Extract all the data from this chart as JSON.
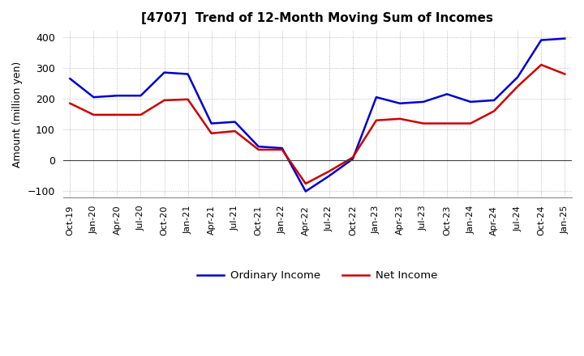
{
  "title": "[4707]  Trend of 12-Month Moving Sum of Incomes",
  "ylabel": "Amount (million yen)",
  "ylim": [
    -120,
    420
  ],
  "yticks": [
    -100,
    0,
    100,
    200,
    300,
    400
  ],
  "background_color": "#ffffff",
  "grid_color": "#aaaaaa",
  "ordinary_income_color": "#0000cc",
  "net_income_color": "#cc0000",
  "x_labels": [
    "Oct-19",
    "Jan-20",
    "Apr-20",
    "Jul-20",
    "Oct-20",
    "Jan-21",
    "Apr-21",
    "Jul-21",
    "Oct-21",
    "Jan-22",
    "Apr-22",
    "Jul-22",
    "Oct-22",
    "Jan-23",
    "Apr-23",
    "Jul-23",
    "Oct-23",
    "Jan-24",
    "Apr-24",
    "Jul-24",
    "Oct-24",
    "Jan-25"
  ],
  "ordinary_income": [
    265,
    205,
    210,
    210,
    285,
    280,
    120,
    125,
    45,
    40,
    -100,
    -50,
    5,
    205,
    185,
    190,
    215,
    190,
    195,
    270,
    390,
    395
  ],
  "net_income": [
    185,
    148,
    148,
    148,
    195,
    198,
    88,
    95,
    35,
    35,
    -75,
    -35,
    10,
    130,
    135,
    120,
    120,
    120,
    160,
    240,
    310,
    280
  ]
}
